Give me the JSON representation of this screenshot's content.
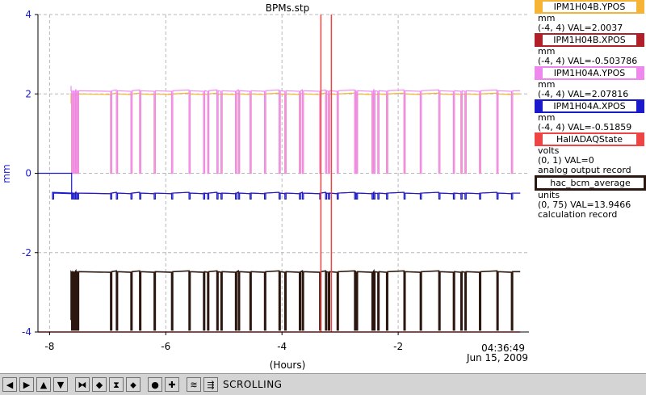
{
  "window_title": "BPMs.stp",
  "chart_data": {
    "type": "line",
    "title": "BPMs.stp",
    "xlabel": "(Hours)",
    "ylabel": "mm",
    "xlim": [
      -8.2,
      0.25
    ],
    "ylim": [
      -4,
      4
    ],
    "xticks": [
      -8,
      -6,
      -4,
      -2
    ],
    "yticks": [
      -4,
      -2,
      0,
      2,
      4
    ],
    "grid": true,
    "time_label": "04:36:49",
    "date_label": "Jun 15, 2009",
    "series": [
      {
        "name": "IPM1H04B.YPOS",
        "color": "#f5b436",
        "baseline": 2.0,
        "dip": 0.0,
        "start_x": -7.63,
        "start_y": 1.75
      },
      {
        "name": "IPM1H04B.XPOS",
        "color": "#b02028",
        "baseline": -0.5,
        "dip": -0.5,
        "start_x": -7.6,
        "start_y": -0.5
      },
      {
        "name": "IPM1H04A.YPOS",
        "color": "#ee88ee",
        "baseline": 2.08,
        "dip": 0.0,
        "start_x": -7.63,
        "start_y": 2.2
      },
      {
        "name": "IPM1H04A.XPOS",
        "color": "#1a1acc",
        "baseline": -0.5,
        "dip": -0.65,
        "start_x": -8.2,
        "start_y": 0.0
      },
      {
        "name": "HallADAQState",
        "color": "#ee4444",
        "baseline": -4.0
      },
      {
        "name": "hac_bcm_average",
        "color": "#2b170f",
        "baseline": -2.48,
        "dip": -3.95,
        "start_x": -7.63,
        "start_y": -3.7
      }
    ],
    "beam_trip_hours": [
      -7.95,
      -7.62,
      -7.58,
      -7.55,
      -7.52,
      -6.95,
      -6.85,
      -6.6,
      -6.58,
      -6.45,
      -6.2,
      -5.9,
      -5.6,
      -5.35,
      -5.28,
      -5.12,
      -5.05,
      -4.8,
      -4.75,
      -4.55,
      -4.3,
      -4.05,
      -3.95,
      -3.7,
      -3.65,
      -3.35,
      -3.33,
      -3.25,
      -3.2,
      -3.05,
      -2.75,
      -2.72,
      -2.45,
      -2.42,
      -2.35,
      -2.2,
      -1.9,
      -1.62,
      -1.6,
      -1.3,
      -1.05,
      -0.92,
      -0.9,
      -0.85,
      -0.6,
      -0.3,
      -0.05
    ],
    "daq_state_marker_hours": [
      -3.33,
      -3.15
    ],
    "legend": [
      {
        "name": "IPM1H04B.YPOS",
        "color": "#f5b436",
        "units": "mm",
        "info": "(-4, 4) VAL=2.0037"
      },
      {
        "name": "IPM1H04B.XPOS",
        "color": "#b02028",
        "units": "mm",
        "info": "(-4, 4) VAL=-0.503786"
      },
      {
        "name": "IPM1H04A.YPOS",
        "color": "#ee88ee",
        "units": "mm",
        "info": "(-4, 4) VAL=2.07816"
      },
      {
        "name": "IPM1H04A.XPOS",
        "color": "#1a1acc",
        "units": "mm",
        "info": "(-4, 4) VAL=-0.51859"
      },
      {
        "name": "HallADAQState",
        "color": "#ee4444",
        "units": "volts",
        "info": "(0, 1) VAL=0",
        "rec": "analog output record"
      },
      {
        "name": "hac_bcm_average",
        "color": "#2b170f",
        "units": "units",
        "info": "(0, 75) VAL=13.9466",
        "rec": "calculation record"
      }
    ]
  },
  "toolbar": {
    "status": "SCROLLING",
    "buttons": [
      {
        "name": "scroll-left-button",
        "glyph": "◀"
      },
      {
        "name": "scroll-right-button",
        "glyph": "▶"
      },
      {
        "name": "scroll-up-button",
        "glyph": "▲"
      },
      {
        "name": "scroll-down-button",
        "glyph": "▼"
      },
      {
        "name": "zoom-in-horizontal-button",
        "glyph": "⧓"
      },
      {
        "name": "zoom-out-horizontal-button",
        "glyph": "◆"
      },
      {
        "name": "zoom-in-vertical-button",
        "glyph": "⧗"
      },
      {
        "name": "zoom-out-vertical-button",
        "glyph": "⬥"
      },
      {
        "name": "reset-button",
        "glyph": "●"
      },
      {
        "name": "add-button",
        "glyph": "✚"
      },
      {
        "name": "history-button",
        "glyph": "≋"
      },
      {
        "name": "export-button",
        "glyph": "⇶"
      }
    ]
  }
}
